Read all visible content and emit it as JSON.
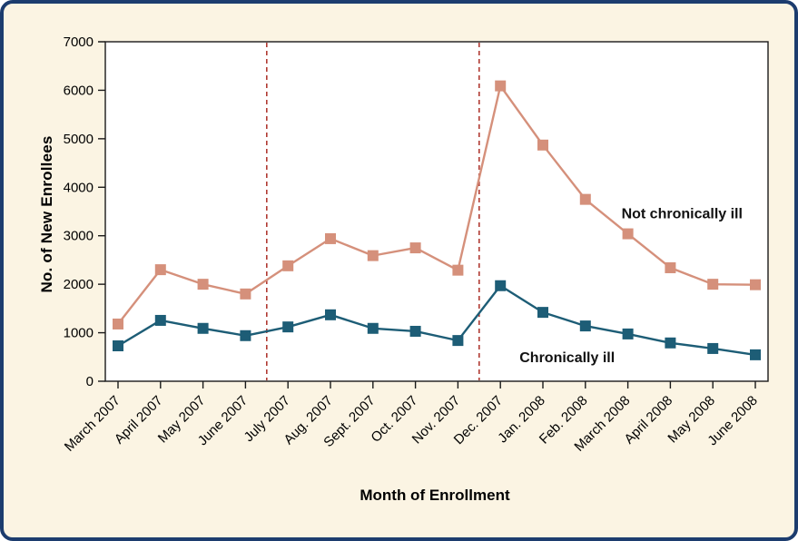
{
  "frame": {
    "background": "#fbf4e3",
    "border_color": "#1c3c6e",
    "plot_background": "#ffffff",
    "axis_color": "#1a1a1a"
  },
  "chart_data": {
    "type": "line",
    "title": "",
    "xlabel": "Month of Enrollment",
    "ylabel": "No. of New Enrollees",
    "ylim": [
      0,
      7000
    ],
    "ytick_step": 1000,
    "grid": false,
    "legend_position": "none",
    "categories": [
      "March 2007",
      "April 2007",
      "May 2007",
      "June 2007",
      "July 2007",
      "Aug. 2007",
      "Sept. 2007",
      "Oct. 2007",
      "Nov. 2007",
      "Dec. 2007",
      "Jan. 2008",
      "Feb. 2008",
      "March 2008",
      "April 2008",
      "May 2008",
      "June 2008"
    ],
    "series": [
      {
        "name": "Not chronically ill",
        "color": "#d5907b",
        "marker": "square",
        "values": [
          1180,
          2300,
          2000,
          1800,
          2380,
          2940,
          2590,
          2750,
          2290,
          6090,
          4870,
          3750,
          3040,
          2340,
          2000,
          1990
        ]
      },
      {
        "name": "Chronically ill",
        "color": "#1d5d76",
        "marker": "square",
        "values": [
          730,
          1255,
          1090,
          940,
          1120,
          1370,
          1090,
          1030,
          840,
          1970,
          1420,
          1140,
          975,
          790,
          675,
          545
        ]
      }
    ],
    "vlines": {
      "color": "#b03a32",
      "style": "dashed",
      "positions": [
        3.5,
        8.5
      ]
    },
    "annotations": [
      {
        "text": "Not chronically ill",
        "x": 11.85,
        "y": 3450
      },
      {
        "text": "Chronically ill",
        "x": 9.45,
        "y": 490
      }
    ]
  }
}
